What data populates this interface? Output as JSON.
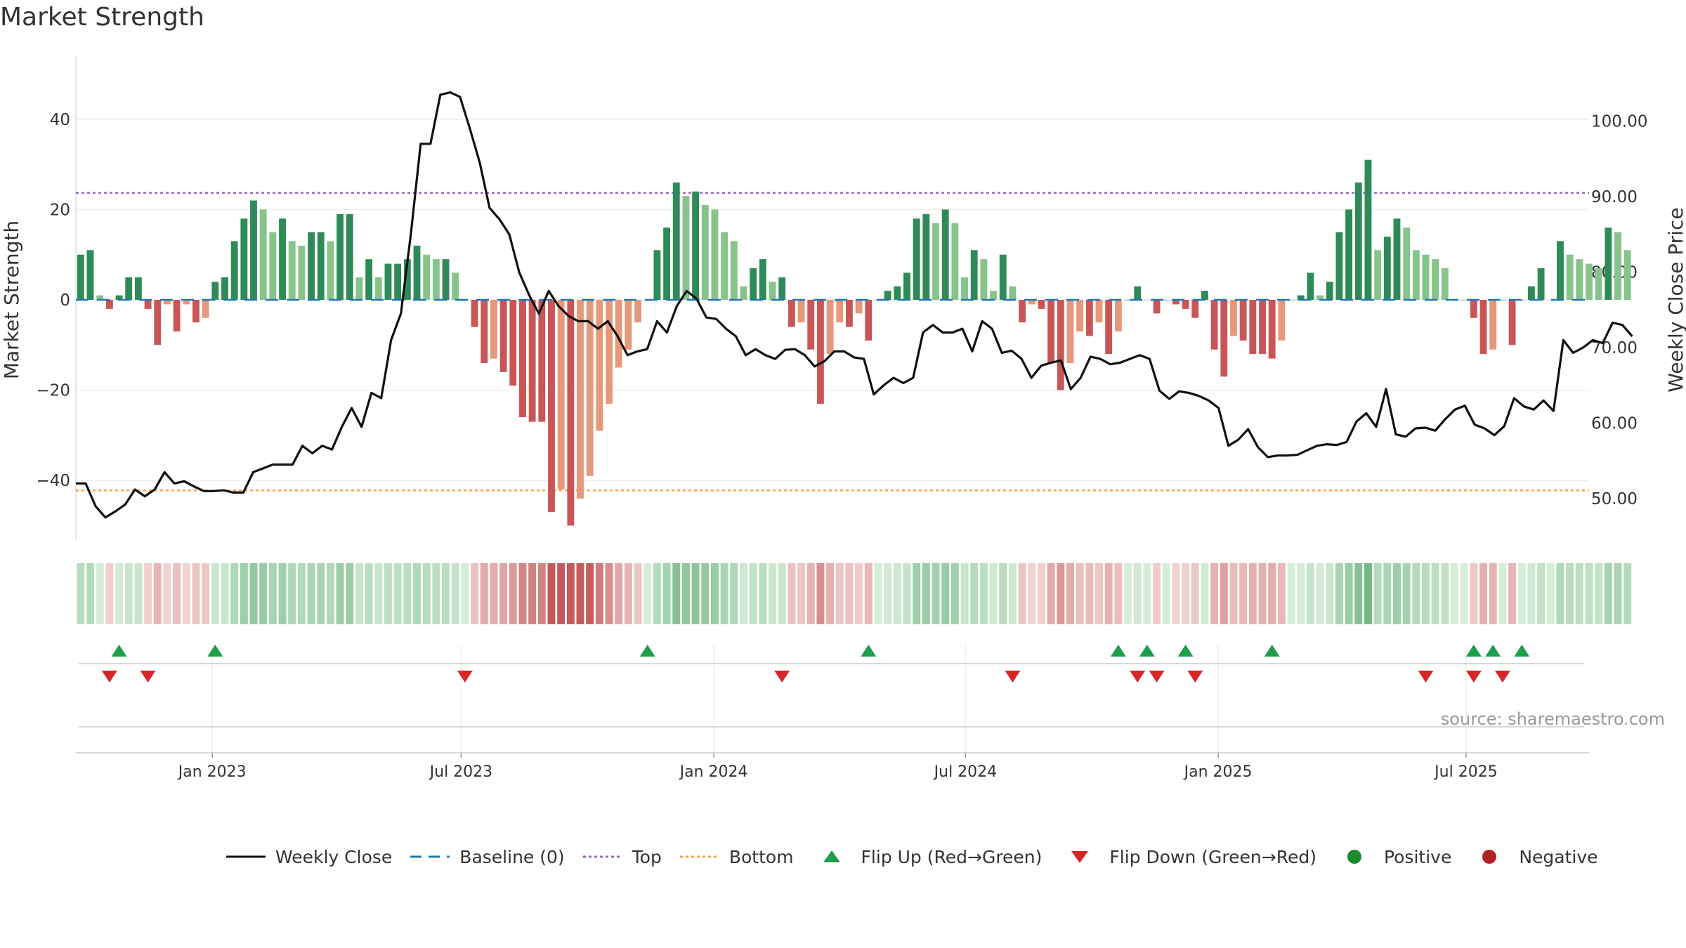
{
  "title": "Market Strength",
  "source": "source: sharemaestro.com",
  "colors": {
    "posStrong": "#2e8b57",
    "posLight": "#86c48a",
    "negStrong": "#c95656",
    "negLight": "#e6987a",
    "close": "#111111",
    "baseline": "#1f77b4",
    "top": "#9467bd",
    "bottom": "#ff9f43",
    "flipUp": "#1e9e4a",
    "flipDown": "#d62728",
    "positive": "#1e8a2e",
    "negative": "#b22222"
  },
  "legend": [
    {
      "key": "close",
      "label": "Weekly Close",
      "icon": "solid-line-icon"
    },
    {
      "key": "baseline",
      "label": "Baseline (0)",
      "icon": "dashed-line-icon"
    },
    {
      "key": "top",
      "label": "Top",
      "icon": "dotted-line-icon"
    },
    {
      "key": "bottom",
      "label": "Bottom",
      "icon": "dotted-line-icon"
    },
    {
      "key": "flipUp",
      "label": "Flip Up (Red→Green)",
      "icon": "triangle-up-icon"
    },
    {
      "key": "flipDown",
      "label": "Flip Down (Green→Red)",
      "icon": "triangle-down-icon"
    },
    {
      "key": "positive",
      "label": "Positive",
      "icon": "circle-icon"
    },
    {
      "key": "negative",
      "label": "Negative",
      "icon": "circle-icon"
    }
  ],
  "chart_data": {
    "type": "bar",
    "title": "Market Strength",
    "ylabel": "Market Strength",
    "y2label": "Weekly Close Price",
    "ylim": [
      -54,
      54
    ],
    "y2lim": [
      43.5,
      108
    ],
    "yticks": [
      -40,
      -20,
      0,
      20,
      40
    ],
    "y2ticks": [
      50,
      60,
      70,
      80,
      90,
      100
    ],
    "y2tick_labels": [
      "50.00",
      "60.00",
      "70.00",
      "80.00",
      "90.00",
      "100.00"
    ],
    "xlim": [
      0,
      157.5
    ],
    "xticks": [
      {
        "label": "Jan 2023",
        "x": 14.2
      },
      {
        "label": "Jul 2023",
        "x": 40.1
      },
      {
        "label": "Jan 2024",
        "x": 66.4
      },
      {
        "label": "Jul 2024",
        "x": 92.6
      },
      {
        "label": "Jan 2025",
        "x": 118.9
      },
      {
        "label": "Jul 2025",
        "x": 144.7
      }
    ],
    "top_level": 23.7,
    "bottom_level": -42.2,
    "grid": true,
    "legend_position": "bottom",
    "strength": [
      10,
      11,
      1,
      -2,
      1,
      5,
      5,
      -2,
      -10,
      -1,
      -7,
      -1,
      -5,
      -4,
      4,
      5,
      13,
      18,
      22,
      20,
      15,
      18,
      13,
      12,
      15,
      15,
      13,
      19,
      19,
      5,
      9,
      5,
      8,
      8,
      9,
      12,
      10,
      9,
      9,
      6,
      0,
      -6,
      -14,
      -13,
      -16,
      -19,
      -26,
      -27,
      -27,
      -47,
      -42,
      -50,
      -44,
      -39,
      -29,
      -23,
      -15,
      -11,
      -5,
      0,
      11,
      16,
      26,
      23,
      24,
      21,
      20,
      15,
      13,
      3,
      7,
      9,
      4,
      5,
      -6,
      -5,
      -11,
      -23,
      -12,
      -5,
      -6,
      -3,
      -9,
      0,
      2,
      3,
      6,
      18,
      19,
      17,
      20,
      17,
      5,
      11,
      9,
      2,
      10,
      3,
      -5,
      -1,
      -2,
      -14,
      -20,
      -14,
      -7,
      -8,
      -5,
      -12,
      -7,
      0,
      3,
      0,
      -3,
      0,
      -1,
      -2,
      -4,
      2,
      -11,
      -17,
      -8,
      -9,
      -12,
      -12,
      -13,
      -9,
      0,
      1,
      6,
      1,
      4,
      15,
      20,
      26,
      31,
      11,
      14,
      18,
      16,
      11,
      10,
      9,
      7,
      0,
      0,
      -4,
      -12,
      -11,
      0,
      -10,
      0,
      3,
      7,
      0,
      13,
      10,
      9,
      8,
      7,
      16,
      15,
      11
    ],
    "close": [
      52.0,
      52.0,
      49.0,
      47.5,
      48.3,
      49.2,
      51.2,
      50.3,
      51.2,
      53.5,
      52.0,
      52.3,
      51.6,
      51.0,
      51.0,
      51.1,
      50.8,
      50.8,
      53.5,
      54.0,
      54.5,
      54.5,
      54.5,
      57.0,
      56.0,
      57.0,
      56.5,
      59.5,
      62.0,
      59.5,
      64.0,
      63.3,
      71.0,
      74.5,
      85.0,
      97.0,
      97.0,
      103.5,
      103.8,
      103.2,
      99.0,
      94.5,
      88.5,
      87.0,
      85.0,
      80.0,
      77.0,
      74.5,
      77.5,
      75.5,
      74.2,
      73.5,
      73.5,
      72.5,
      73.5,
      71.5,
      69.0,
      69.5,
      69.8,
      73.5,
      72.0,
      75.5,
      77.5,
      76.5,
      74.0,
      73.8,
      72.5,
      71.5,
      69.0,
      69.8,
      69.0,
      68.5,
      69.7,
      69.8,
      69.0,
      67.5,
      68.2,
      69.5,
      69.5,
      68.7,
      68.5,
      63.8,
      65.0,
      66.0,
      65.3,
      66.0,
      72.0,
      73.0,
      72.0,
      72.0,
      72.5,
      69.5,
      73.5,
      72.5,
      69.3,
      69.6,
      68.5,
      66.0,
      67.6,
      68.0,
      68.3,
      64.5,
      66.0,
      68.8,
      68.5,
      67.8,
      68.0,
      68.5,
      69.0,
      68.5,
      64.3,
      63.2,
      64.2,
      64.0,
      63.6,
      63.0,
      62.0,
      57.0,
      57.8,
      59.2,
      56.8,
      55.5,
      55.7,
      55.7,
      55.8,
      56.4,
      57.0,
      57.2,
      57.1,
      57.5,
      60.2,
      61.3,
      59.5,
      64.5,
      58.5,
      58.2,
      59.3,
      59.4,
      59.0,
      60.5,
      61.8,
      62.3,
      59.8,
      59.3,
      58.4,
      59.6,
      63.3,
      62.2,
      61.8,
      63.0,
      61.6,
      71.0,
      69.3,
      70.0,
      71.0,
      70.6,
      73.3,
      73.0,
      71.5
    ],
    "flip_up": [
      4,
      14,
      59,
      82,
      108,
      111,
      115,
      124,
      145,
      147,
      150
    ],
    "flip_down": [
      3,
      7,
      40,
      73,
      97,
      110,
      112,
      116,
      140,
      145,
      148
    ]
  }
}
